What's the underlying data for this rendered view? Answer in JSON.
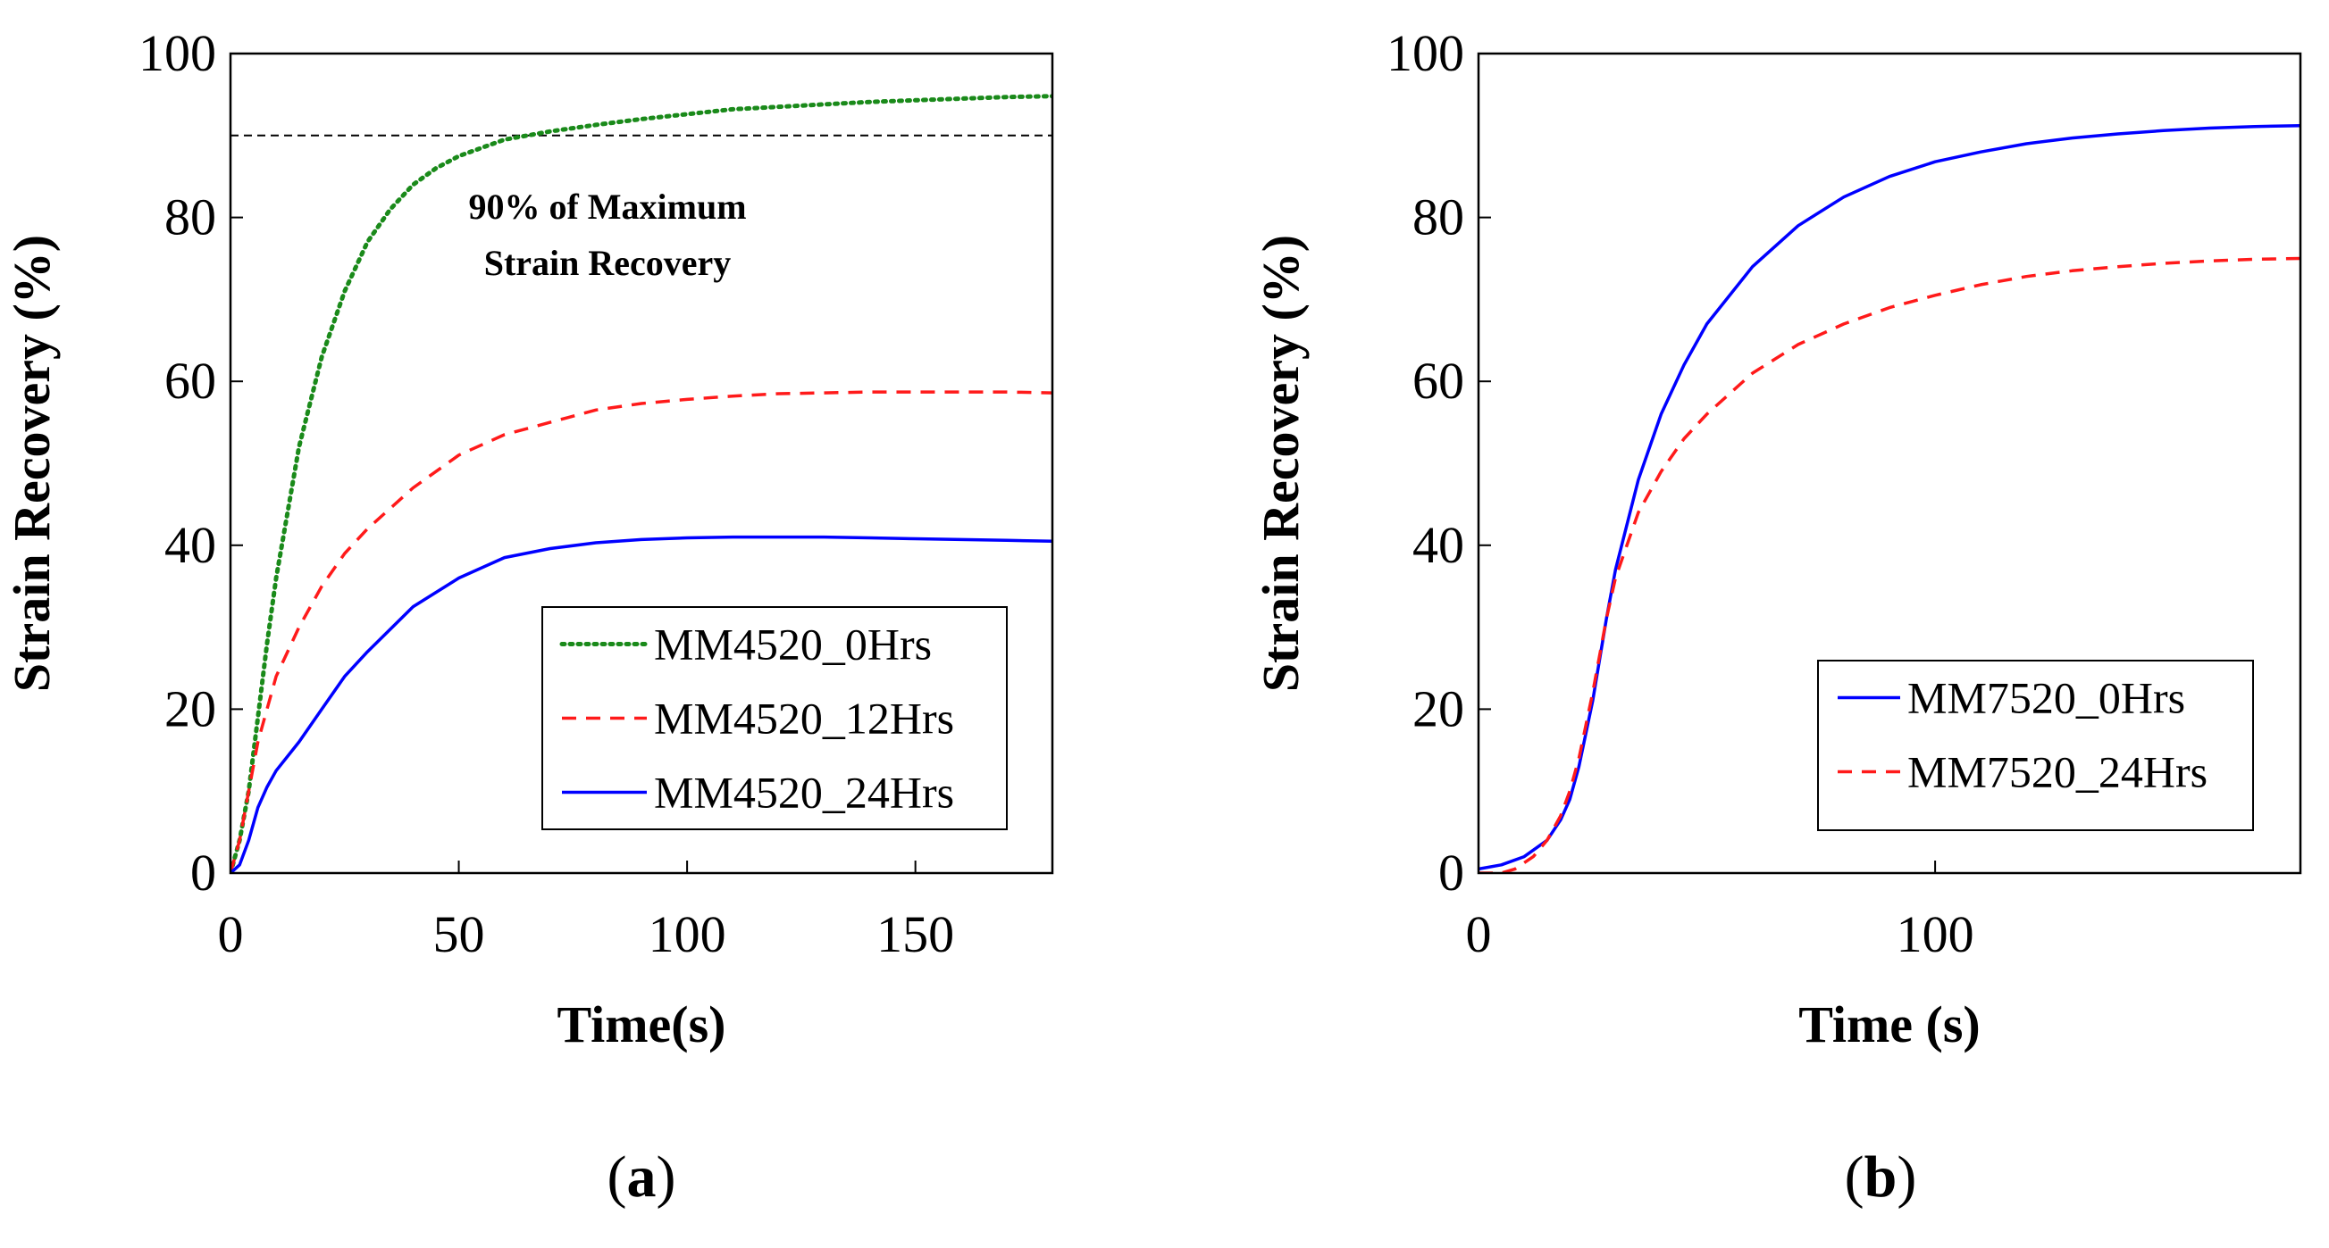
{
  "chart_data": [
    {
      "type": "line",
      "panel_label": {
        "open": "(",
        "letter": "a",
        "close": ")"
      },
      "xlabel": "Time(s)",
      "ylabel": "Strain Recovery (%)",
      "xlim": [
        0,
        180
      ],
      "ylim": [
        0,
        100
      ],
      "xticks": [
        0,
        50,
        100,
        150
      ],
      "yticks": [
        0,
        20,
        40,
        60,
        80,
        100
      ],
      "reference_line": {
        "y": 90,
        "style": "dashed",
        "color": "#000000"
      },
      "annotation": {
        "lines": [
          "90% of Maximum",
          "Strain Recovery"
        ]
      },
      "legend_position": "bottom-right",
      "series": [
        {
          "name": "MM4520_0Hrs",
          "color": "#1a8a1a",
          "style": "dotted",
          "x": [
            0,
            2,
            4,
            6,
            8,
            10,
            15,
            20,
            25,
            30,
            35,
            40,
            45,
            50,
            60,
            70,
            80,
            90,
            100,
            110,
            120,
            130,
            140,
            150,
            160,
            170,
            180
          ],
          "y": [
            0,
            4,
            10,
            19,
            28,
            36,
            52,
            63,
            71,
            77,
            81,
            84,
            86,
            87.5,
            89.5,
            90.5,
            91.3,
            92,
            92.6,
            93.2,
            93.5,
            93.8,
            94.1,
            94.3,
            94.5,
            94.7,
            94.8
          ]
        },
        {
          "name": "MM4520_12Hrs",
          "color": "#ff1a1a",
          "style": "dashed",
          "x": [
            0,
            2,
            4,
            6,
            8,
            10,
            15,
            20,
            25,
            30,
            40,
            50,
            60,
            70,
            80,
            90,
            100,
            110,
            120,
            130,
            140,
            150,
            160,
            170,
            180
          ],
          "y": [
            0,
            4,
            10,
            16,
            20,
            24,
            30,
            35,
            39,
            42,
            47,
            51,
            53.5,
            55,
            56.5,
            57.3,
            57.8,
            58.2,
            58.5,
            58.6,
            58.7,
            58.7,
            58.7,
            58.7,
            58.6
          ]
        },
        {
          "name": "MM4520_24Hrs",
          "color": "#0000ff",
          "style": "solid",
          "x": [
            0,
            2,
            4,
            6,
            8,
            10,
            15,
            20,
            25,
            30,
            40,
            50,
            60,
            70,
            80,
            90,
            100,
            110,
            120,
            130,
            140,
            150,
            160,
            170,
            180
          ],
          "y": [
            0,
            1,
            4,
            8,
            10.5,
            12.5,
            16,
            20,
            24,
            27,
            32.5,
            36,
            38.5,
            39.6,
            40.3,
            40.7,
            40.9,
            41,
            41,
            41,
            40.9,
            40.8,
            40.7,
            40.6,
            40.5
          ]
        }
      ]
    },
    {
      "type": "line",
      "panel_label": {
        "open": "(",
        "letter": "b",
        "close": ")"
      },
      "xlabel": "Time (s)",
      "ylabel": "Strain Recovery (%)",
      "xlim": [
        0,
        180
      ],
      "ylim": [
        0,
        100
      ],
      "xticks": [
        0,
        100
      ],
      "yticks": [
        0,
        20,
        40,
        60,
        80,
        100
      ],
      "legend_position": "bottom-right",
      "series": [
        {
          "name": "MM7520_0Hrs",
          "color": "#0000ff",
          "style": "solid",
          "x": [
            0,
            5,
            10,
            15,
            18,
            20,
            22,
            25,
            28,
            30,
            35,
            40,
            45,
            50,
            60,
            70,
            80,
            90,
            100,
            110,
            120,
            130,
            140,
            150,
            160,
            170,
            180
          ],
          "y": [
            0.5,
            1,
            2,
            4,
            6.5,
            9,
            13,
            21,
            31,
            37,
            48,
            56,
            62,
            67,
            74,
            79,
            82.5,
            85,
            86.8,
            88,
            89,
            89.7,
            90.2,
            90.6,
            90.9,
            91.1,
            91.2
          ]
        },
        {
          "name": "MM7520_24Hrs",
          "color": "#ff1a1a",
          "style": "dashed",
          "x": [
            0,
            5,
            8,
            12,
            15,
            18,
            20,
            22,
            25,
            28,
            30,
            35,
            40,
            45,
            50,
            60,
            70,
            80,
            90,
            100,
            110,
            120,
            130,
            140,
            150,
            160,
            170,
            180
          ],
          "y": [
            0,
            0,
            0.5,
            2,
            4,
            7,
            10,
            14,
            22,
            31,
            36,
            44,
            49,
            53,
            56,
            61,
            64.5,
            67,
            69,
            70.5,
            71.8,
            72.8,
            73.5,
            74,
            74.4,
            74.7,
            74.9,
            75
          ]
        }
      ]
    }
  ]
}
